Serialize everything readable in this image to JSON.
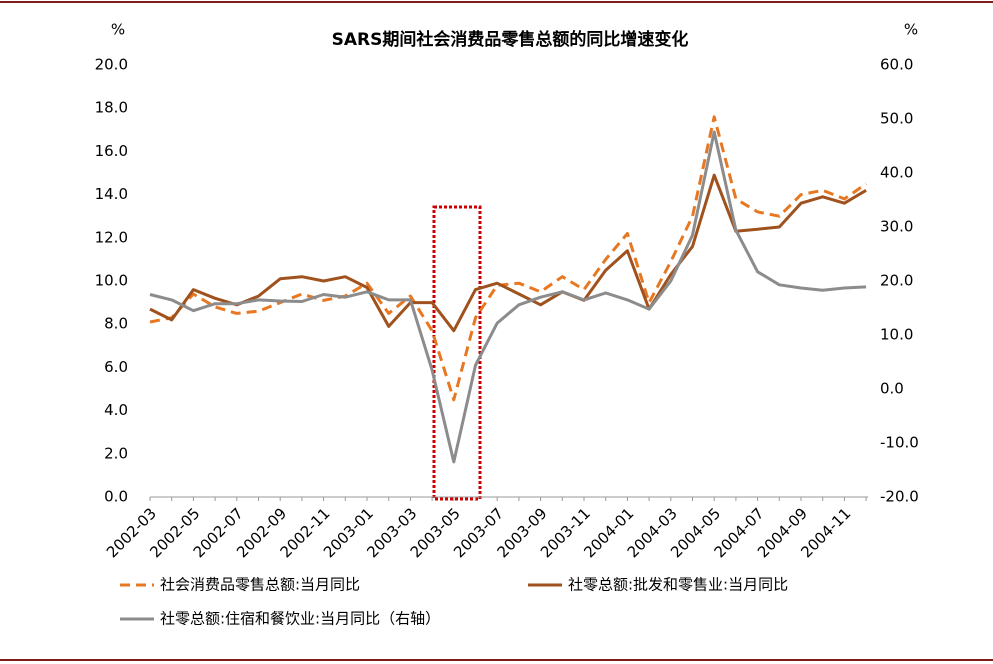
{
  "chart_data": {
    "type": "line",
    "title": "SARS期间社会消费品零售总额的同比增速变化",
    "y_label": "%",
    "y2_label": "%",
    "categories": [
      "2002-03",
      null,
      "2002-05",
      null,
      "2002-07",
      null,
      "2002-09",
      null,
      "2002-11",
      null,
      "2003-01",
      null,
      "2003-03",
      null,
      "2003-05",
      null,
      "2003-07",
      null,
      "2003-09",
      null,
      "2003-11",
      null,
      "2004-01",
      null,
      "2004-03",
      null,
      "2004-05",
      null,
      "2004-07",
      null,
      "2004-09",
      null,
      "2004-11",
      null
    ],
    "series": [
      {
        "name": "社会消费品零售总额:当月同比",
        "color": "#e87722",
        "dash": true,
        "values": [
          8.1,
          8.3,
          9.4,
          8.8,
          8.5,
          8.6,
          9.0,
          9.4,
          9.1,
          9.3,
          9.9,
          8.5,
          9.3,
          7.7,
          4.5,
          8.3,
          9.8,
          9.9,
          9.5,
          10.2,
          9.6,
          11.0,
          12.2,
          9.0,
          10.9,
          13.0,
          17.6,
          13.8,
          13.2,
          13.0,
          14.0,
          14.2,
          13.8,
          14.5
        ]
      },
      {
        "name": "社零总额:批发和零售业:当月同比",
        "color": "#a0521e",
        "values": [
          8.7,
          8.2,
          9.6,
          9.2,
          8.9,
          9.3,
          10.1,
          10.2,
          10.0,
          10.2,
          9.7,
          7.9,
          9.0,
          9.0,
          7.7,
          9.6,
          9.9,
          9.4,
          8.9,
          9.5,
          9.1,
          10.5,
          11.4,
          8.7,
          10.3,
          11.6,
          14.9,
          12.3,
          12.4,
          12.5,
          13.6,
          13.9,
          13.6,
          14.2
        ]
      },
      {
        "name": "社零总额:住宿和餐饮业:当月同比（右轴）",
        "color": "#8c8c8c",
        "axis": "y2",
        "values": [
          17.5,
          16.5,
          14.5,
          15.8,
          15.8,
          16.5,
          16.3,
          16.2,
          17.5,
          17.0,
          18.0,
          16.5,
          16.5,
          3.5,
          -13.5,
          4.4,
          12.2,
          15.6,
          17.0,
          18.0,
          16.5,
          17.8,
          16.5,
          14.8,
          20.0,
          28.5,
          47.6,
          29.4,
          21.7,
          19.3,
          18.7,
          18.3,
          18.7,
          18.9
        ]
      }
    ],
    "ylim": [
      0,
      20
    ],
    "yticks": [
      {
        "value": 0,
        "label": "0.0"
      },
      {
        "value": 2,
        "label": "2.0"
      },
      {
        "value": 4,
        "label": "4.0"
      },
      {
        "value": 6,
        "label": "6.0"
      },
      {
        "value": 8,
        "label": "8.0"
      },
      {
        "value": 10,
        "label": "10.0"
      },
      {
        "value": 12,
        "label": "12.0"
      },
      {
        "value": 14,
        "label": "14.0"
      },
      {
        "value": 16,
        "label": "16.0"
      },
      {
        "value": 18,
        "label": "18.0"
      },
      {
        "value": 20,
        "label": "20.0"
      }
    ],
    "y2lim": [
      -20,
      60
    ],
    "y2ticks": [
      {
        "value": -20,
        "label": "-20.0"
      },
      {
        "value": -10,
        "label": "-10.0"
      },
      {
        "value": 0,
        "label": "0.0"
      },
      {
        "value": 10,
        "label": "10.0"
      },
      {
        "value": 20,
        "label": "20.0"
      },
      {
        "value": 30,
        "label": "30.0"
      },
      {
        "value": 40,
        "label": "40.0"
      },
      {
        "value": 50,
        "label": "50.0"
      },
      {
        "value": 60,
        "label": "60.0"
      }
    ]
  }
}
